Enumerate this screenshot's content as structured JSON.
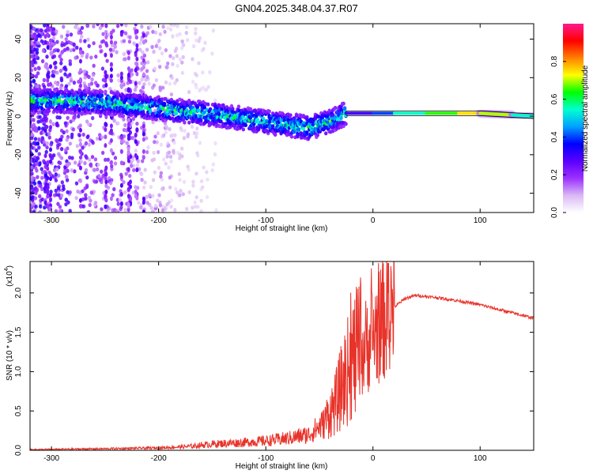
{
  "title": "GN04.2025.348.04.37.R07",
  "chart_data": [
    {
      "type": "heatmap",
      "title": "GN04.2025.348.04.37.R07",
      "xlabel": "Height of straight line (km)",
      "ylabel": "Frequency (Hz)",
      "xlim": [
        -320,
        150
      ],
      "ylim": [
        -50,
        48
      ],
      "x_ticks": [
        -300,
        -200,
        -100,
        0,
        100
      ],
      "y_ticks": [
        -40,
        -20,
        0,
        20,
        40
      ],
      "colorbar": {
        "label": "Normalized spectral amplitude",
        "range": [
          0,
          1
        ],
        "ticks": [
          "0.0",
          "0.2",
          "0.4",
          "0.6",
          "0.8"
        ],
        "colors": [
          "#ffffff",
          "#d9b8f5",
          "#9b30ff",
          "#5a00ff",
          "#0000ff",
          "#00a0ff",
          "#00ffd0",
          "#00ff00",
          "#ffff00",
          "#ff8000",
          "#ff0000",
          "#ff1a8c"
        ]
      },
      "ridge": [
        {
          "x": -300,
          "freq": 8
        },
        {
          "x": -250,
          "freq": 7
        },
        {
          "x": -200,
          "freq": 4
        },
        {
          "x": -150,
          "freq": 1
        },
        {
          "x": -100,
          "freq": -3
        },
        {
          "x": -60,
          "freq": -6
        },
        {
          "x": -40,
          "freq": -3
        },
        {
          "x": -25,
          "freq": 1.5
        },
        {
          "x": 0,
          "freq": 1.5
        },
        {
          "x": 50,
          "freq": 1.5
        },
        {
          "x": 100,
          "freq": 1.5
        },
        {
          "x": 150,
          "freq": 0
        }
      ]
    },
    {
      "type": "line",
      "xlabel": "Height of straight line (km)",
      "ylabel": "SNR (10 * v/v)",
      "scale_label": "(x10",
      "scale_exponent": "4",
      "xlim": [
        -320,
        150
      ],
      "ylim": [
        0,
        2.4
      ],
      "x_ticks": [
        -300,
        -200,
        -100,
        0,
        100
      ],
      "y_ticks": [
        "0.0",
        "0.5",
        "1.0",
        "1.5",
        "2.0"
      ],
      "series": [
        {
          "name": "SNR",
          "color": "#e8332a",
          "x": [
            -320,
            -250,
            -200,
            -170,
            -150,
            -120,
            -100,
            -80,
            -60,
            -45,
            -35,
            -28,
            -20,
            -15,
            -10,
            -5,
            0,
            5,
            10,
            15,
            20,
            30,
            40,
            60,
            80,
            100,
            120,
            150
          ],
          "y": [
            0.01,
            0.02,
            0.03,
            0.05,
            0.08,
            0.1,
            0.12,
            0.15,
            0.2,
            0.35,
            0.55,
            0.8,
            1.05,
            1.15,
            1.2,
            1.3,
            1.4,
            1.5,
            1.58,
            1.7,
            1.82,
            1.93,
            1.97,
            1.94,
            1.9,
            1.85,
            1.78,
            1.68
          ]
        }
      ]
    }
  ]
}
